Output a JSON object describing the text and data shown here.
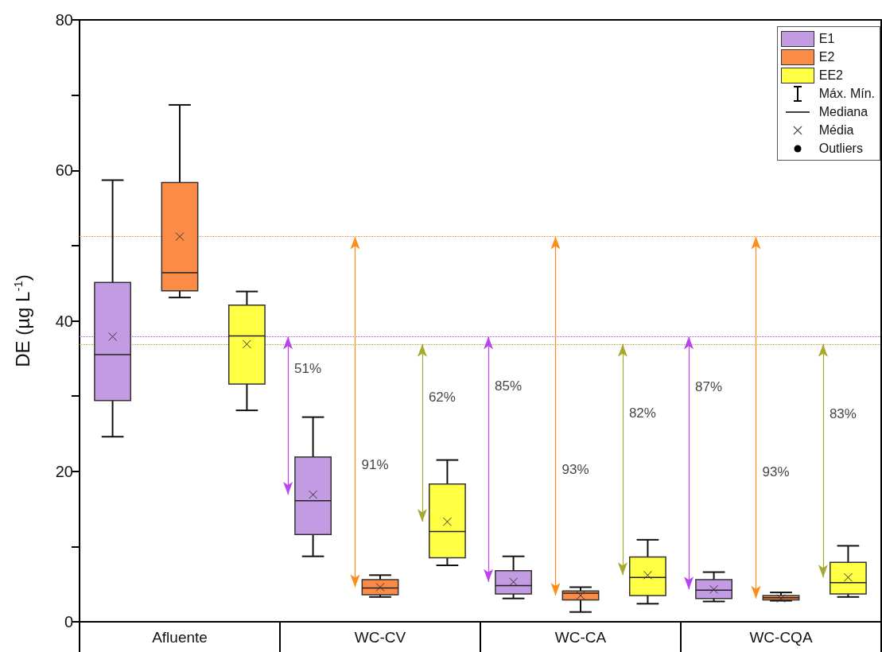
{
  "chart_data": {
    "type": "box",
    "ylabel": "DE (µg L$^{-1}$)",
    "categories": [
      "Afluente",
      "WC-CV",
      "WC-CA",
      "WC-CQA"
    ],
    "ylim": [
      0,
      80
    ],
    "yticks": [
      0,
      {
        "value": 10,
        "label": null
      },
      20,
      {
        "value": 30,
        "label": null
      },
      40,
      {
        "value": 50,
        "label": null
      },
      60,
      {
        "value": 70,
        "label": null
      },
      80
    ],
    "grid": false,
    "legend": "top right",
    "series": [
      {
        "name": "E1",
        "color": "#c39be3",
        "boxes": [
          {
            "low": 24.6,
            "q1": 29.4,
            "median": 35.5,
            "q3": 45.1,
            "high": 58.7,
            "mean": 37.9
          },
          {
            "low": 8.7,
            "q1": 11.6,
            "median": 16.1,
            "q3": 21.9,
            "high": 27.2,
            "mean": 16.9
          },
          {
            "low": 3.1,
            "q1": 3.7,
            "median": 4.8,
            "q3": 6.8,
            "high": 8.7,
            "mean": 5.3
          },
          {
            "low": 2.7,
            "q1": 3.1,
            "median": 4.2,
            "q3": 5.6,
            "high": 6.6,
            "mean": 4.3
          }
        ]
      },
      {
        "name": "E2",
        "color": "#fb8c48",
        "boxes": [
          {
            "low": 43.1,
            "q1": 44.0,
            "median": 46.4,
            "q3": 58.4,
            "high": 68.7,
            "mean": 51.2
          },
          {
            "low": 3.3,
            "q1": 3.6,
            "median": 4.5,
            "q3": 5.6,
            "high": 6.2,
            "mean": 4.6
          },
          {
            "low": 1.3,
            "q1": 2.9,
            "median": 3.8,
            "q3": 4.1,
            "high": 4.6,
            "mean": 3.5
          },
          {
            "low": 2.8,
            "q1": 2.9,
            "median": 3.2,
            "q3": 3.5,
            "high": 3.9,
            "mean": 3.1
          }
        ]
      },
      {
        "name": "EE2",
        "color": "#ffff44",
        "boxes": [
          {
            "low": 28.1,
            "q1": 31.6,
            "median": 38.0,
            "q3": 42.1,
            "high": 43.9,
            "mean": 36.9
          },
          {
            "low": 7.5,
            "q1": 8.5,
            "median": 12.0,
            "q3": 18.3,
            "high": 21.5,
            "mean": 13.3
          },
          {
            "low": 2.4,
            "q1": 3.5,
            "median": 5.9,
            "q3": 8.6,
            "high": 10.9,
            "mean": 6.2
          },
          {
            "low": 3.3,
            "q1": 3.7,
            "median": 5.2,
            "q3": 7.9,
            "high": 10.1,
            "mean": 5.9
          }
        ]
      }
    ],
    "ref_lines": [
      {
        "axis": "y",
        "value": 37.9,
        "color": "#bb44ee",
        "line_style": "dotted"
      },
      {
        "axis": "y",
        "value": 51.2,
        "color": "#ff8c1a",
        "line_style": "dotted"
      },
      {
        "axis": "y",
        "value": 36.9,
        "color": "#a8a830",
        "line_style": "dotted"
      }
    ],
    "annotations": [
      "Máx. Mín.",
      "Mediana",
      "Média",
      "Outliers",
      "51%",
      "91%",
      "62%",
      "85%",
      "93%",
      "82%",
      "87%",
      "93%",
      "83%"
    ]
  }
}
